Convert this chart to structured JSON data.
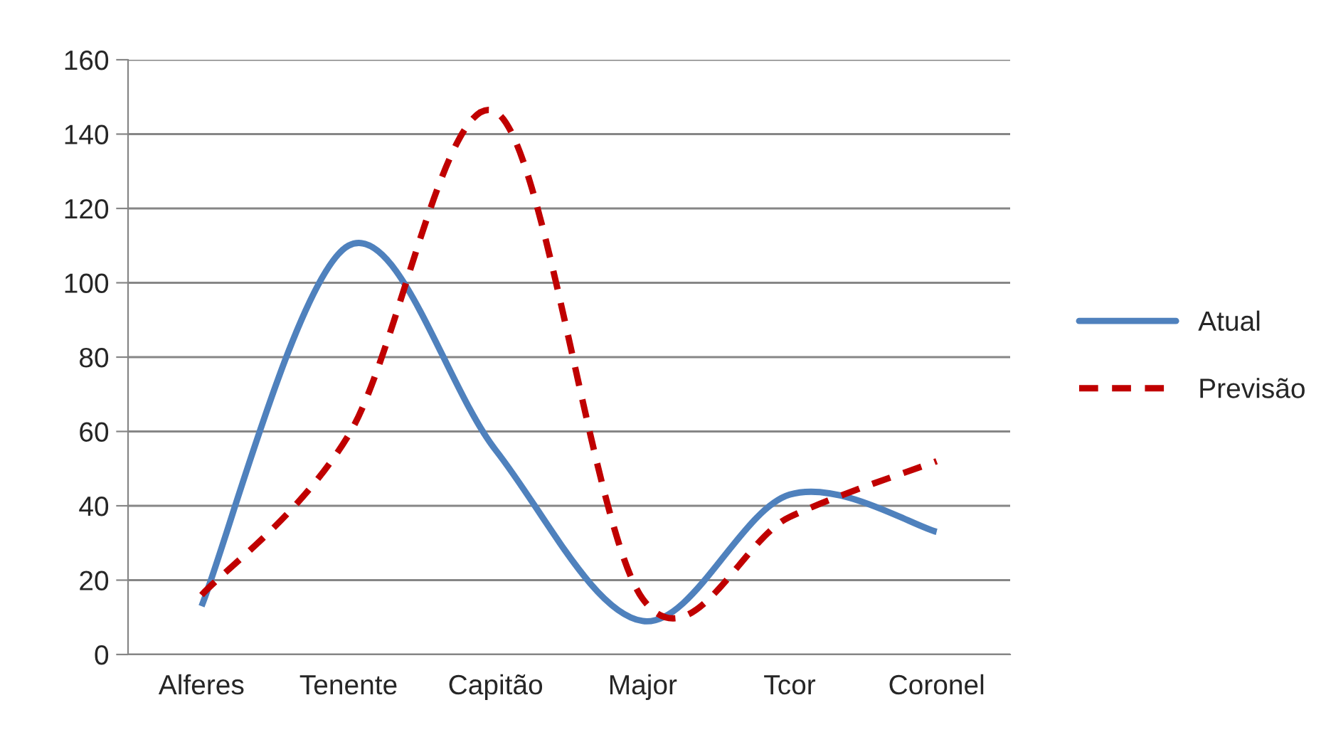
{
  "chart_data": {
    "type": "line",
    "categories": [
      "Alferes",
      "Tenente",
      "Capitão",
      "Major",
      "Tcor",
      "Coronel"
    ],
    "series": [
      {
        "name": "Atual",
        "color": "#4f81bd",
        "values": [
          13,
          110,
          55,
          9,
          43,
          33
        ],
        "line_style": "solid"
      },
      {
        "name": "Previsão",
        "color": "#c00000",
        "values": [
          16,
          59,
          146,
          15,
          37,
          52
        ],
        "line_style": "dashed"
      }
    ],
    "ylim": [
      0,
      160
    ],
    "yticks": [
      0,
      20,
      40,
      60,
      80,
      100,
      120,
      140,
      160
    ],
    "grid": "y",
    "legend": "right",
    "marker": "none"
  }
}
